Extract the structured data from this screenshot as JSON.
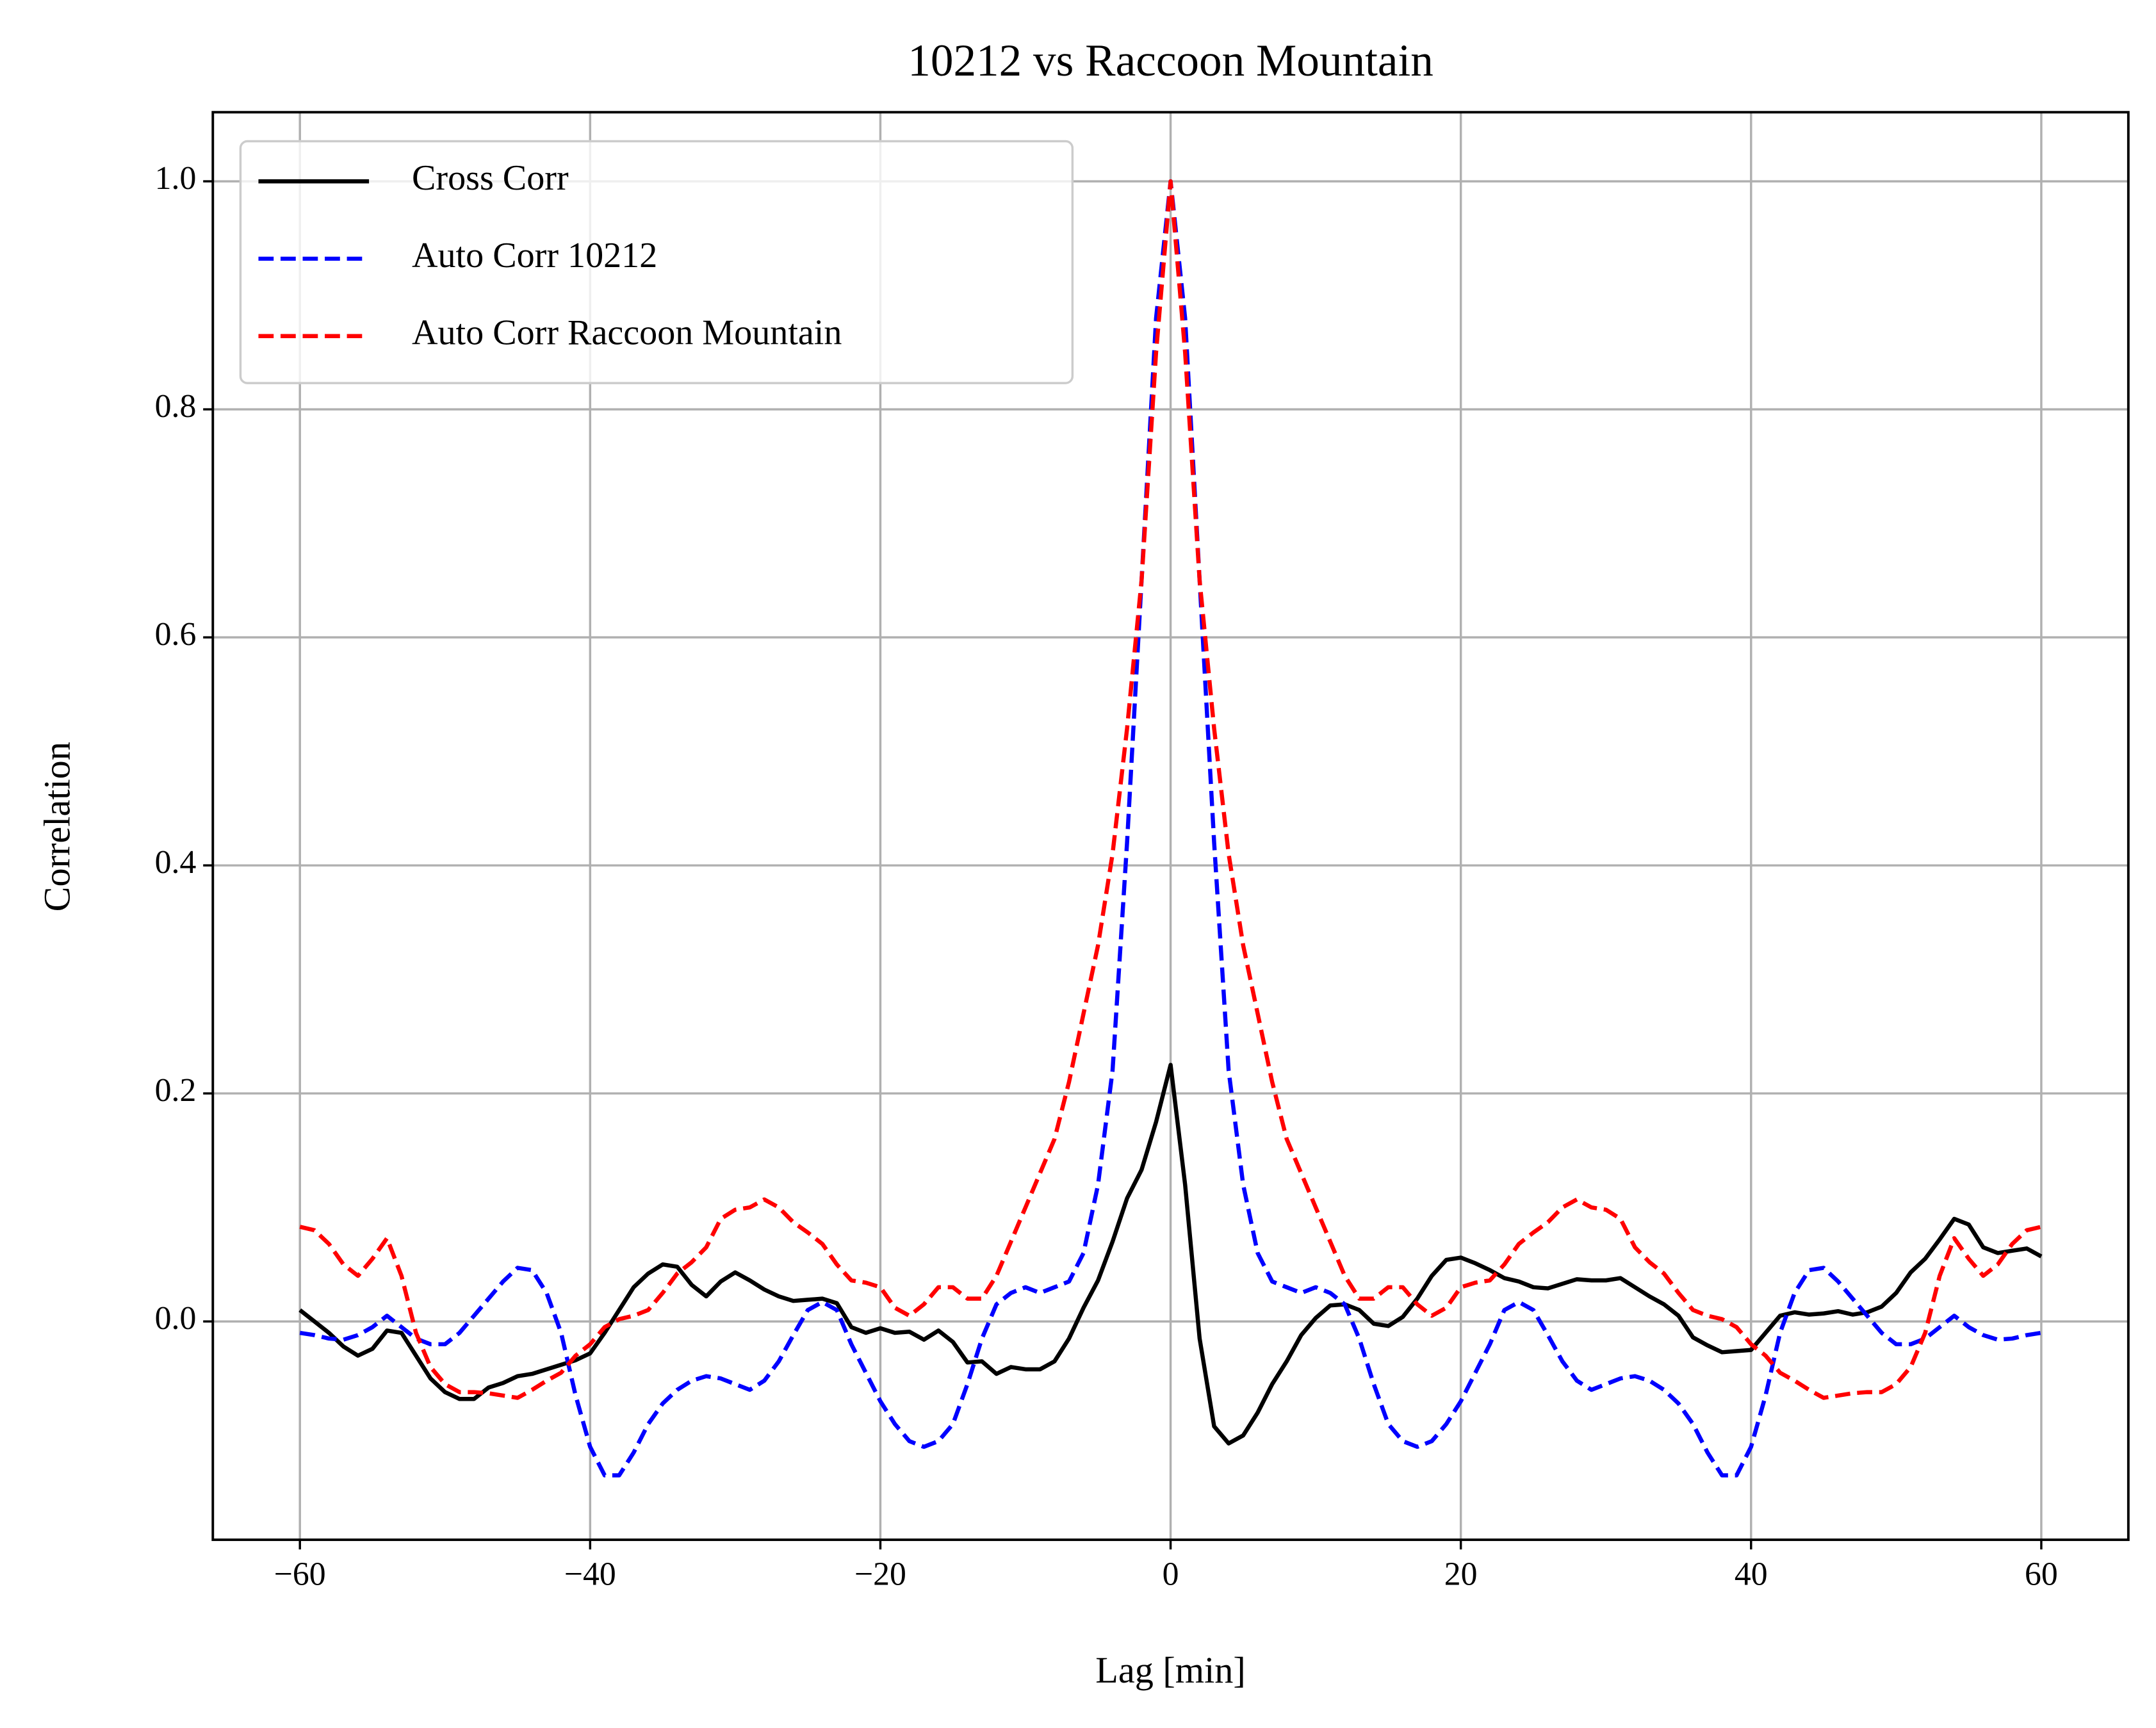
{
  "chart_data": {
    "type": "line",
    "title": "10212 vs Raccoon Mountain",
    "xlabel": "Lag [min]",
    "ylabel": "Correlation",
    "x": [
      -60,
      -59,
      -58,
      -57,
      -56,
      -55,
      -54,
      -53,
      -52,
      -51,
      -50,
      -49,
      -48,
      -47,
      -46,
      -45,
      -44,
      -43,
      -42,
      -41,
      -40,
      -39,
      -38,
      -37,
      -36,
      -35,
      -34,
      -33,
      -32,
      -31,
      -30,
      -29,
      -28,
      -27,
      -26,
      -25,
      -24,
      -23,
      -22,
      -21,
      -20,
      -19,
      -18,
      -17,
      -16,
      -15,
      -14,
      -13,
      -12,
      -11,
      -10,
      -9,
      -8,
      -7,
      -6,
      -5,
      -4,
      -3,
      -2,
      -1,
      0,
      1,
      2,
      3,
      4,
      5,
      6,
      7,
      8,
      9,
      10,
      11,
      12,
      13,
      14,
      15,
      16,
      17,
      18,
      19,
      20,
      21,
      22,
      23,
      24,
      25,
      26,
      27,
      28,
      29,
      30,
      31,
      32,
      33,
      34,
      35,
      36,
      37,
      38,
      39,
      40,
      41,
      42,
      43,
      44,
      45,
      46,
      47,
      48,
      49,
      50,
      51,
      52,
      53,
      54,
      55,
      56,
      57,
      58,
      59,
      60
    ],
    "series": [
      {
        "name": "Cross Corr",
        "color": "#000000",
        "linestyle": "solid",
        "values": [
          0.01,
          0.0,
          -0.01,
          -0.022,
          -0.03,
          -0.024,
          -0.008,
          -0.01,
          -0.03,
          -0.05,
          -0.062,
          -0.068,
          -0.068,
          -0.058,
          -0.054,
          -0.048,
          -0.046,
          -0.042,
          -0.038,
          -0.034,
          -0.028,
          -0.01,
          0.01,
          0.03,
          0.042,
          0.05,
          0.048,
          0.032,
          0.022,
          0.035,
          0.043,
          0.036,
          0.028,
          0.022,
          0.018,
          0.019,
          0.02,
          0.016,
          -0.005,
          -0.01,
          -0.006,
          -0.01,
          -0.009,
          -0.016,
          -0.008,
          -0.018,
          -0.036,
          -0.035,
          -0.046,
          -0.04,
          -0.042,
          -0.042,
          -0.035,
          -0.015,
          0.012,
          0.036,
          0.07,
          0.108,
          0.133,
          0.175,
          0.225,
          0.12,
          -0.015,
          -0.092,
          -0.107,
          -0.1,
          -0.08,
          -0.055,
          -0.035,
          -0.012,
          0.003,
          0.014,
          0.015,
          0.01,
          -0.002,
          -0.004,
          0.004,
          0.02,
          0.04,
          0.054,
          0.056,
          0.051,
          0.045,
          0.038,
          0.035,
          0.03,
          0.029,
          0.033,
          0.037,
          0.036,
          0.036,
          0.038,
          0.03,
          0.022,
          0.015,
          0.005,
          -0.014,
          -0.021,
          -0.027,
          -0.026,
          -0.025,
          -0.01,
          0.005,
          0.008,
          0.006,
          0.007,
          0.009,
          0.006,
          0.008,
          0.013,
          0.025,
          0.043,
          0.055,
          0.072,
          0.09,
          0.085,
          0.065,
          0.06,
          0.062,
          0.064,
          0.057
        ]
      },
      {
        "name": "Auto Corr 10212",
        "color": "#0000ff",
        "linestyle": "dashed",
        "values": [
          -0.01,
          -0.012,
          -0.015,
          -0.016,
          -0.012,
          -0.005,
          0.005,
          -0.005,
          -0.015,
          -0.02,
          -0.02,
          -0.01,
          0.005,
          0.02,
          0.035,
          0.047,
          0.045,
          0.025,
          -0.01,
          -0.065,
          -0.11,
          -0.135,
          -0.135,
          -0.115,
          -0.09,
          -0.072,
          -0.06,
          -0.052,
          -0.048,
          -0.05,
          -0.055,
          -0.06,
          -0.052,
          -0.035,
          -0.012,
          0.01,
          0.017,
          0.01,
          -0.02,
          -0.045,
          -0.07,
          -0.09,
          -0.105,
          -0.11,
          -0.105,
          -0.09,
          -0.055,
          -0.015,
          0.015,
          0.025,
          0.03,
          0.025,
          0.03,
          0.035,
          0.06,
          0.12,
          0.22,
          0.42,
          0.65,
          0.88,
          1.0,
          0.88,
          0.65,
          0.42,
          0.22,
          0.12,
          0.06,
          0.035,
          0.03,
          0.025,
          0.03,
          0.025,
          0.015,
          -0.015,
          -0.055,
          -0.09,
          -0.105,
          -0.11,
          -0.105,
          -0.09,
          -0.07,
          -0.045,
          -0.02,
          0.01,
          0.017,
          0.01,
          -0.012,
          -0.035,
          -0.052,
          -0.06,
          -0.055,
          -0.05,
          -0.048,
          -0.052,
          -0.06,
          -0.072,
          -0.09,
          -0.115,
          -0.135,
          -0.135,
          -0.11,
          -0.065,
          -0.01,
          0.025,
          0.045,
          0.047,
          0.035,
          0.02,
          0.005,
          -0.01,
          -0.02,
          -0.02,
          -0.015,
          -0.005,
          0.005,
          -0.005,
          -0.012,
          -0.016,
          -0.015,
          -0.012,
          -0.01
        ]
      },
      {
        "name": "Auto Corr Raccoon Mountain",
        "color": "#ff0000",
        "linestyle": "dashed",
        "values": [
          0.083,
          0.08,
          0.068,
          0.05,
          0.04,
          0.055,
          0.073,
          0.04,
          -0.01,
          -0.04,
          -0.055,
          -0.062,
          -0.062,
          -0.063,
          -0.065,
          -0.067,
          -0.06,
          -0.052,
          -0.045,
          -0.03,
          -0.02,
          -0.005,
          0.002,
          0.005,
          0.01,
          0.025,
          0.042,
          0.052,
          0.065,
          0.09,
          0.098,
          0.1,
          0.107,
          0.1,
          0.087,
          0.078,
          0.068,
          0.05,
          0.036,
          0.034,
          0.03,
          0.012,
          0.005,
          0.015,
          0.03,
          0.03,
          0.02,
          0.02,
          0.04,
          0.07,
          0.1,
          0.13,
          0.16,
          0.21,
          0.27,
          0.33,
          0.41,
          0.52,
          0.65,
          0.85,
          1.0,
          0.85,
          0.65,
          0.52,
          0.41,
          0.33,
          0.27,
          0.21,
          0.16,
          0.13,
          0.1,
          0.07,
          0.04,
          0.02,
          0.02,
          0.03,
          0.03,
          0.015,
          0.005,
          0.012,
          0.03,
          0.034,
          0.036,
          0.05,
          0.068,
          0.078,
          0.087,
          0.1,
          0.107,
          0.1,
          0.098,
          0.09,
          0.065,
          0.052,
          0.042,
          0.025,
          0.01,
          0.005,
          0.002,
          -0.005,
          -0.02,
          -0.03,
          -0.045,
          -0.052,
          -0.06,
          -0.067,
          -0.065,
          -0.063,
          -0.062,
          -0.062,
          -0.055,
          -0.04,
          -0.01,
          0.04,
          0.073,
          0.055,
          0.04,
          0.05,
          0.068,
          0.08,
          0.083
        ]
      }
    ],
    "xlim": [
      -66,
      66
    ],
    "ylim": [
      -0.1915,
      1.0606
    ],
    "xticks": [
      {
        "value": -60,
        "label": "−60"
      },
      {
        "value": -40,
        "label": "−40"
      },
      {
        "value": -20,
        "label": "−20"
      },
      0,
      20,
      40,
      60
    ],
    "yticks": [
      {
        "value": 0,
        "label": "0.0"
      },
      0.2,
      0.4,
      0.6,
      0.8,
      {
        "value": 1,
        "label": "1.0"
      }
    ],
    "grid": true,
    "legend": "upper left"
  }
}
